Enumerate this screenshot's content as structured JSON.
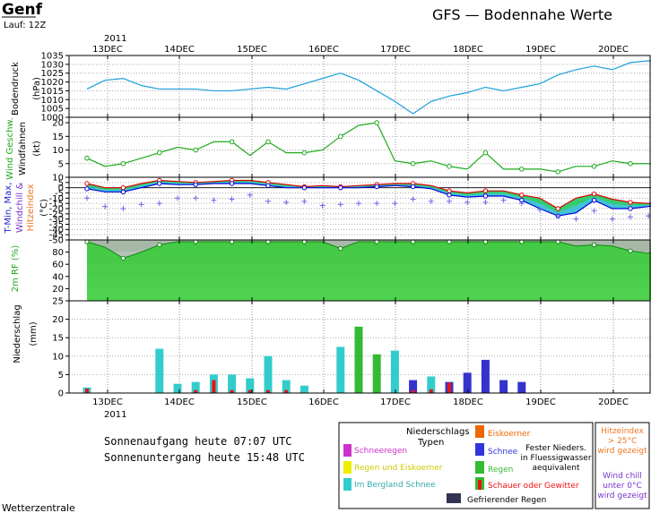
{
  "header": {
    "city": "Genf",
    "run": "Lauf: 12Z",
    "title": "GFS — Bodennahe Werte",
    "year": "2011"
  },
  "dates": [
    "13DEC",
    "14DEC",
    "15DEC",
    "16DEC",
    "17DEC",
    "18DEC",
    "19DEC",
    "20DEC"
  ],
  "panel_labels": {
    "pressure": [
      "Bodendruck",
      "(hPa)"
    ],
    "wind": [
      "Wind Geschw.",
      "Windfahnen",
      "(kt)"
    ],
    "temp": [
      "T-Min, Max,",
      "Windchill &",
      "Hitzeindex",
      "(°C)"
    ],
    "rh": "2m RF (%)",
    "precip": [
      "Niederschlag",
      "(mm)"
    ]
  },
  "colors": {
    "pressure": "#1aa0dc",
    "wind": "#1eaa1e",
    "tmax": "#dd0000",
    "tmin": "#0000dd",
    "rh_fill": "#33cc33",
    "snow": "#3333cc",
    "mountain_snow": "#33cccc",
    "rain": "#33bb33",
    "shower": "#ee1111",
    "sleet": "#ee6600",
    "freezing": "#333355",
    "snow_rain": "#cc33cc",
    "rain_sleet": "#eeee00",
    "windchill_text": "#7733cc",
    "heat_text": "#ee7722"
  },
  "sun": {
    "sunrise": "Sonnenaufgang heute 07:07 UTC",
    "sunset": "Sonnenuntergang heute 15:48 UTC"
  },
  "legend": {
    "title": "Niederschlags",
    "title2": "Typen",
    "snow_rain": "Schneeregen",
    "rain_sleet": "Regen und Eiskoerner",
    "mountain_snow": "Im Bergland Schnee",
    "sleet": "Eiskoerner",
    "snow": "Schnee",
    "rain": "Regen",
    "shower": "Schauer oder Gewitter",
    "note1": "Fester Nieders.",
    "note2": "in Fluessigwasser",
    "note3": "aequivalent",
    "freezing": "Gefrierender Regen",
    "heat": [
      "Hitzeindex",
      "> 25°C",
      "wird gezeigt"
    ],
    "chill": [
      "Wind chill",
      "unter 0°C",
      "wird gezeigt"
    ]
  },
  "footer": "Wetterzentrale",
  "chart_data": [
    {
      "type": "line",
      "name": "pressure",
      "ylim": [
        1000,
        1035
      ],
      "yticks": [
        1000,
        1005,
        1010,
        1015,
        1020,
        1025,
        1030,
        1035
      ],
      "x": [
        0,
        1,
        2,
        3,
        4,
        5,
        6,
        7,
        8,
        9,
        10,
        11,
        12,
        13,
        14,
        15,
        16,
        17,
        18,
        19,
        20,
        21,
        22,
        23,
        24,
        25,
        26,
        27,
        28,
        29,
        30,
        31,
        32
      ],
      "values": [
        1016,
        1021,
        1022,
        1018,
        1016,
        1016,
        1016,
        1015,
        1015,
        1016,
        1017,
        1016,
        1019,
        1022,
        1025,
        1021,
        1015,
        1009,
        1002,
        1009,
        1012,
        1014,
        1017,
        1015,
        1017,
        1019,
        1024,
        1027,
        1029,
        1027,
        1031,
        1032,
        1031
      ]
    },
    {
      "type": "line",
      "name": "wind",
      "ylim": [
        0,
        22
      ],
      "yticks": [
        5,
        10,
        15,
        20
      ],
      "x": [
        0,
        1,
        2,
        3,
        4,
        5,
        6,
        7,
        8,
        9,
        10,
        11,
        12,
        13,
        14,
        15,
        16,
        17,
        18,
        19,
        20,
        21,
        22,
        23,
        24,
        25,
        26,
        27,
        28,
        29,
        30,
        31,
        32
      ],
      "values": [
        7,
        4,
        5,
        7,
        9,
        11,
        10,
        13,
        13,
        8,
        13,
        9,
        9,
        10,
        15,
        19,
        20,
        6,
        5,
        6,
        4,
        3,
        9,
        3,
        3,
        3,
        2,
        4,
        4,
        6,
        5,
        5,
        4
      ]
    },
    {
      "type": "area",
      "name": "temperature",
      "ylim": [
        -50,
        10
      ],
      "yticks": [
        10,
        5,
        0,
        -5,
        -10,
        -15,
        -20,
        -25,
        -30,
        -35,
        -40,
        -45,
        -50
      ],
      "x": [
        0,
        1,
        2,
        3,
        4,
        5,
        6,
        7,
        8,
        9,
        10,
        11,
        12,
        13,
        14,
        15,
        16,
        17,
        18,
        19,
        20,
        21,
        22,
        23,
        24,
        25,
        26,
        27,
        28,
        29,
        30,
        31,
        32
      ],
      "tmax": [
        4,
        0,
        0,
        4,
        7,
        6,
        5,
        6,
        7,
        7,
        5,
        3,
        1,
        2,
        1,
        2,
        3,
        4,
        4,
        2,
        -3,
        -5,
        -3,
        -3,
        -7,
        -10,
        -20,
        -10,
        -6,
        -11,
        -14,
        -15,
        -10
      ],
      "tmin": [
        -1,
        -4,
        -4,
        0,
        4,
        3,
        3,
        4,
        4,
        4,
        2,
        0,
        0,
        0,
        0,
        0,
        1,
        2,
        1,
        -1,
        -7,
        -9,
        -8,
        -8,
        -12,
        -20,
        -27,
        -24,
        -12,
        -20,
        -20,
        -18,
        -15
      ],
      "windchill": [
        -10,
        -18,
        -20,
        -16,
        -15,
        -10,
        -10,
        -12,
        -11,
        -7,
        -13,
        -14,
        -13,
        -17,
        -16,
        -15,
        -15,
        -15,
        -11,
        -13,
        -13,
        -14,
        -14,
        -12,
        -15,
        -21,
        -27,
        -30,
        -22,
        -30,
        -28,
        -27,
        -25
      ]
    },
    {
      "type": "area",
      "name": "rh",
      "ylim": [
        0,
        100
      ],
      "yticks": [
        20,
        40,
        60,
        80
      ],
      "x": [
        0,
        1,
        2,
        3,
        4,
        5,
        6,
        7,
        8,
        9,
        10,
        11,
        12,
        13,
        14,
        15,
        16,
        17,
        18,
        19,
        20,
        21,
        22,
        23,
        24,
        25,
        26,
        27,
        28,
        29,
        30,
        31,
        32
      ],
      "values": [
        97,
        88,
        70,
        80,
        92,
        97,
        97,
        97,
        97,
        97,
        97,
        97,
        97,
        97,
        86,
        97,
        97,
        97,
        97,
        97,
        97,
        97,
        97,
        97,
        97,
        97,
        97,
        90,
        92,
        90,
        82,
        78,
        93
      ]
    },
    {
      "type": "bar",
      "name": "precipitation",
      "ylim": [
        0,
        25
      ],
      "yticks": [
        0,
        5,
        10,
        15,
        20,
        25
      ],
      "bars": [
        {
          "x": 0,
          "value": 1.5,
          "kind": "mountain_snow",
          "shower": 1.2
        },
        {
          "x": 4,
          "value": 12,
          "kind": "mountain_snow"
        },
        {
          "x": 5,
          "value": 2.5,
          "kind": "mountain_snow"
        },
        {
          "x": 6,
          "value": 3,
          "kind": "mountain_snow",
          "shower": 0.8
        },
        {
          "x": 7,
          "value": 5,
          "kind": "mountain_snow",
          "shower": 3.5
        },
        {
          "x": 8,
          "value": 5,
          "kind": "mountain_snow",
          "shower": 0.8
        },
        {
          "x": 9,
          "value": 4,
          "kind": "mountain_snow",
          "shower": 0.8
        },
        {
          "x": 10,
          "value": 10,
          "kind": "mountain_snow",
          "shower": 0.8
        },
        {
          "x": 11,
          "value": 3.5,
          "kind": "mountain_snow",
          "shower": 0.8
        },
        {
          "x": 12,
          "value": 2,
          "kind": "mountain_snow"
        },
        {
          "x": 14,
          "value": 12.5,
          "kind": "mountain_snow"
        },
        {
          "x": 15,
          "value": 18,
          "kind": "rain"
        },
        {
          "x": 16,
          "value": 10.5,
          "kind": "rain"
        },
        {
          "x": 17,
          "value": 11.5,
          "kind": "mountain_snow"
        },
        {
          "x": 18,
          "value": 3.5,
          "kind": "snow",
          "shower": 0.8
        },
        {
          "x": 19,
          "value": 4.5,
          "kind": "mountain_snow",
          "shower": 1.0
        },
        {
          "x": 20,
          "value": 3,
          "kind": "snow",
          "shower": 2.8
        },
        {
          "x": 21,
          "value": 5.5,
          "kind": "snow"
        },
        {
          "x": 22,
          "value": 9,
          "kind": "snow"
        },
        {
          "x": 23,
          "value": 3.5,
          "kind": "snow"
        },
        {
          "x": 24,
          "value": 3,
          "kind": "snow"
        }
      ]
    }
  ]
}
